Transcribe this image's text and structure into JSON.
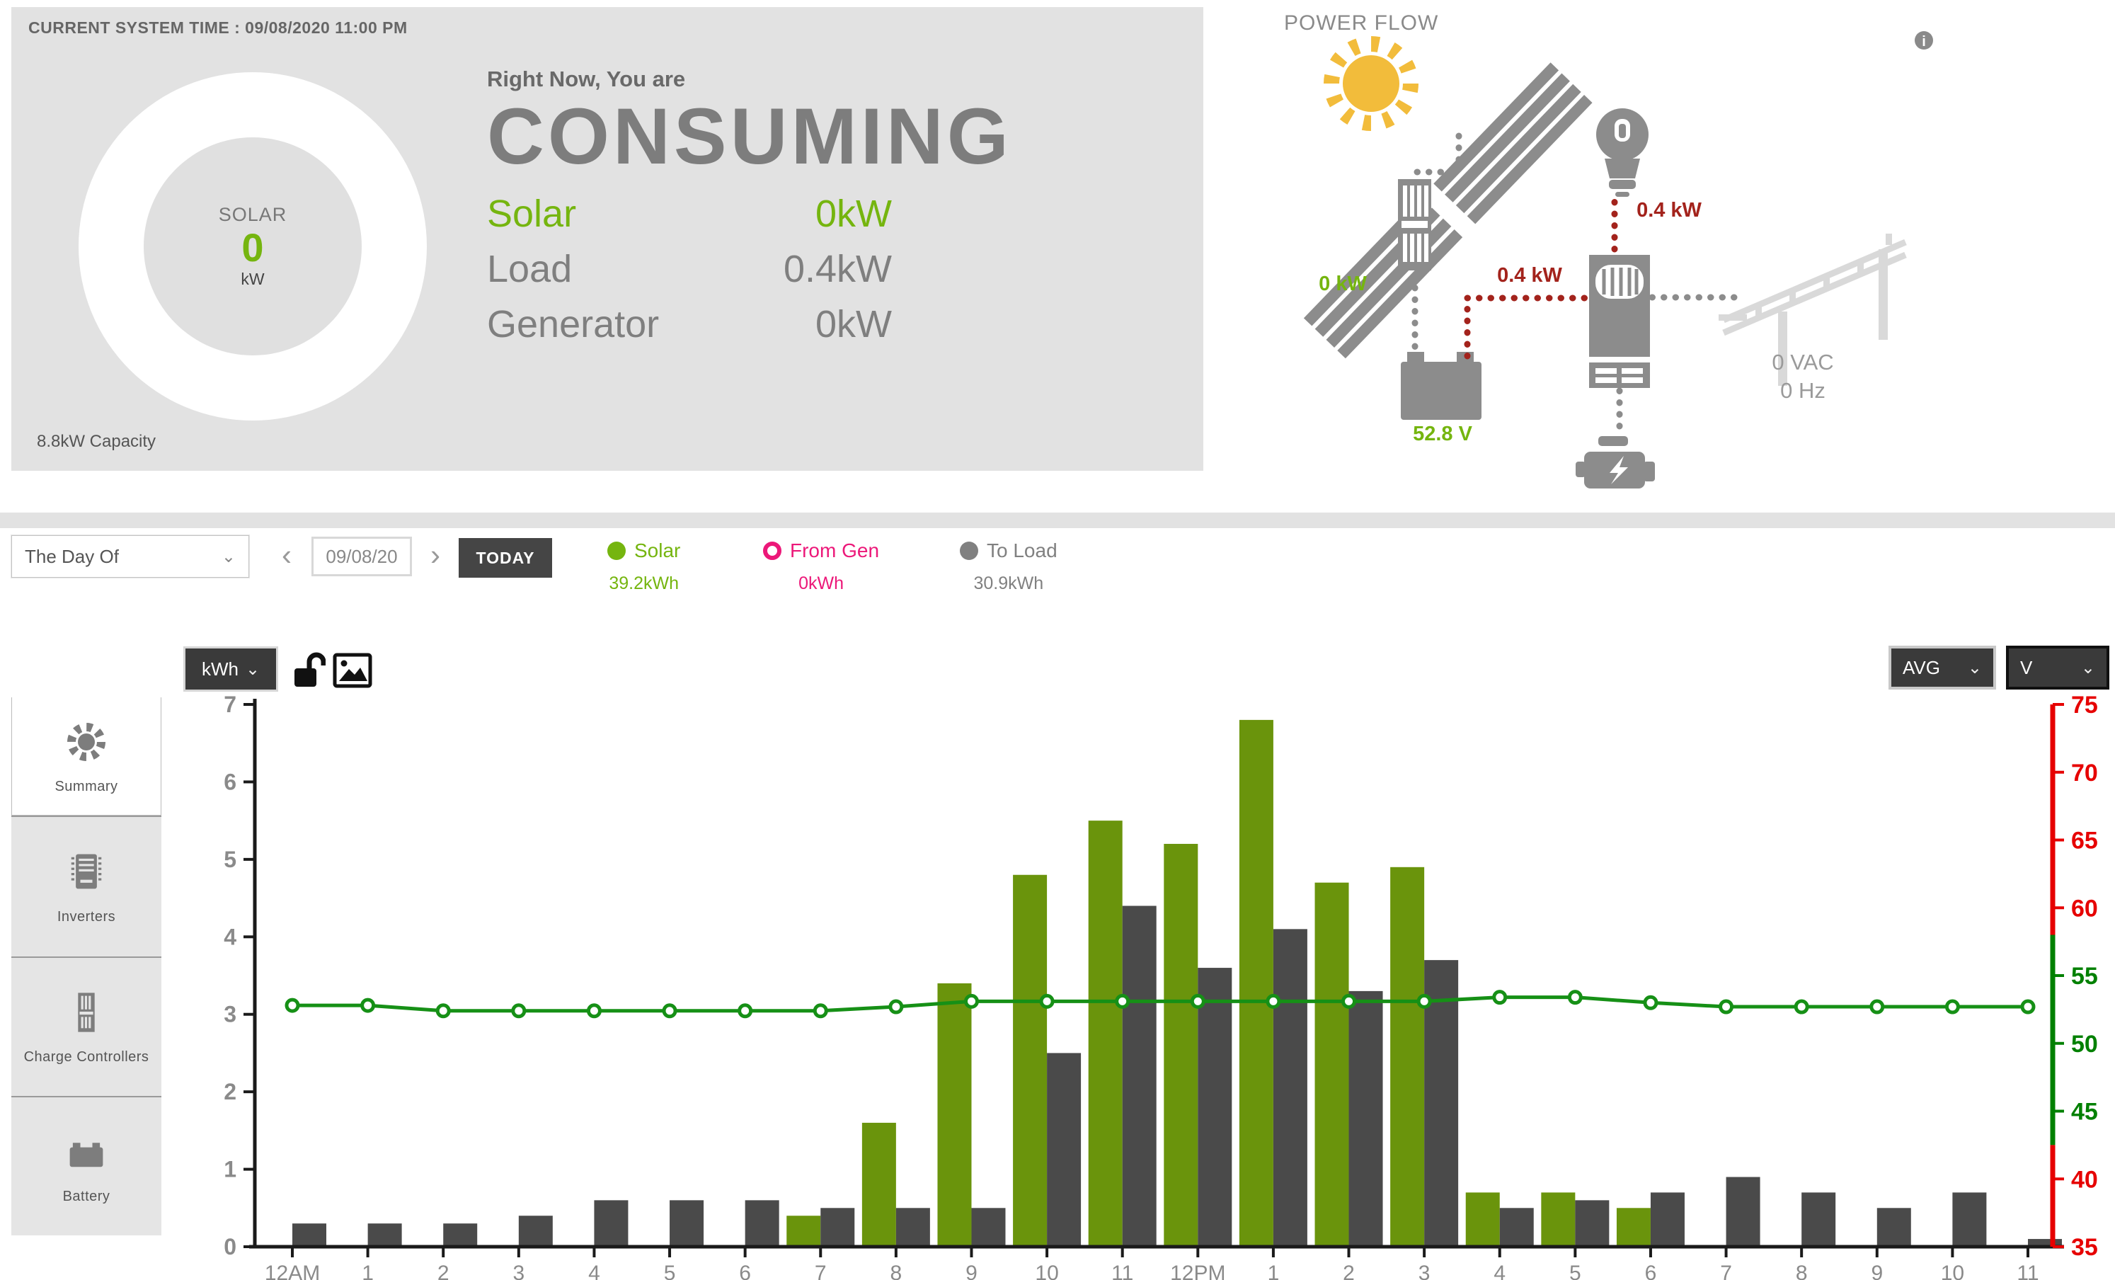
{
  "header": {
    "system_time": "CURRENT SYSTEM TIME : 09/08/2020 11:00 PM",
    "gauge": {
      "label": "SOLAR",
      "value": "0",
      "unit": "kW",
      "capacity": "8.8kW Capacity"
    },
    "status": {
      "intro": "Right Now, You are",
      "state": "CONSUMING",
      "rows": [
        {
          "label": "Solar",
          "value": "0kW",
          "highlight": true
        },
        {
          "label": "Load",
          "value": "0.4kW",
          "highlight": false
        },
        {
          "label": "Generator",
          "value": "0kW",
          "highlight": false
        }
      ]
    }
  },
  "power_flow": {
    "title": "POWER FLOW",
    "labels": {
      "solar_output": "0 kW",
      "battery_to_inverter": "0.4 kW",
      "inverter_to_load": "0.4 kW",
      "battery_voltage": "52.8 V",
      "grid_vac": "0 VAC",
      "grid_hz": "0 Hz",
      "info": "i"
    },
    "colors": {
      "active_red": "#a3231c",
      "active_green": "#75b50f",
      "idle_gray": "#8c8c8c",
      "faint_gray": "#d9d9d9",
      "sun_yellow": "#f2bc3b"
    }
  },
  "toolbar": {
    "range_select": "The Day Of",
    "prev": "‹",
    "next": "›",
    "date_value": "09/08/20",
    "today_button": "TODAY",
    "legend": [
      {
        "label": "Solar",
        "value": "39.2kWh",
        "color": "#75b50f",
        "style": "filled"
      },
      {
        "label": "From Gen",
        "value": "0kWh",
        "color": "#ec1879",
        "style": "hollow"
      },
      {
        "label": "To Load",
        "value": "30.9kWh",
        "color": "#808080",
        "style": "filled"
      }
    ]
  },
  "sidebar": {
    "items": [
      {
        "label": "Summary",
        "icon": "sun-icon",
        "active": true
      },
      {
        "label": "Inverters",
        "icon": "inverter-icon",
        "active": false
      },
      {
        "label": "Charge Controllers",
        "icon": "charge-controller-icon",
        "active": false
      },
      {
        "label": "Battery",
        "icon": "battery-icon",
        "active": false
      }
    ]
  },
  "chart_controls": {
    "unit_select": "kWh",
    "agg_select": "AVG",
    "measure_select": "V",
    "chevron": "⌄"
  },
  "chart_data": {
    "type": "bar+line",
    "categories": [
      "12AM",
      "1",
      "2",
      "3",
      "4",
      "5",
      "6",
      "7",
      "8",
      "9",
      "10",
      "11",
      "12PM",
      "1",
      "2",
      "3",
      "4",
      "5",
      "6",
      "7",
      "8",
      "9",
      "10",
      "11"
    ],
    "series": [
      {
        "name": "Solar",
        "type": "bar",
        "unit": "kWh",
        "axis": "left",
        "color": "#6a940c",
        "values": [
          0,
          0,
          0,
          0,
          0,
          0,
          0,
          0.4,
          1.6,
          3.4,
          4.8,
          5.5,
          5.2,
          6.8,
          4.7,
          4.9,
          0.7,
          0.7,
          0.5,
          0,
          0,
          0,
          0,
          0
        ]
      },
      {
        "name": "To Load",
        "type": "bar",
        "unit": "kWh",
        "axis": "left",
        "color": "#4a4a4a",
        "values": [
          0.3,
          0.3,
          0.3,
          0.4,
          0.6,
          0.6,
          0.6,
          0.5,
          0.5,
          0.5,
          2.5,
          4.4,
          3.6,
          4.1,
          3.3,
          3.7,
          0.5,
          0.6,
          0.7,
          0.9,
          0.7,
          0.5,
          0.7,
          0.1
        ]
      },
      {
        "name": "Battery Voltage AVG",
        "type": "line",
        "unit": "V",
        "axis": "right",
        "color": "#169016",
        "values": [
          52.8,
          52.8,
          52.4,
          52.4,
          52.4,
          52.4,
          52.4,
          52.4,
          52.7,
          53.1,
          53.1,
          53.1,
          53.1,
          53.1,
          53.1,
          53.1,
          53.4,
          53.4,
          53.0,
          52.7,
          52.7,
          52.7,
          52.7,
          52.7
        ]
      }
    ],
    "left_axis": {
      "min": 0,
      "max": 7,
      "step": 1,
      "label_color": "#8a8a8a"
    },
    "right_axis": {
      "min": 35,
      "max": 75,
      "step": 5,
      "green_zone": [
        42.5,
        58
      ],
      "red_color": "#e60000",
      "green_color": "#008000"
    },
    "grid": false,
    "legend_position": "top-toolbar"
  }
}
